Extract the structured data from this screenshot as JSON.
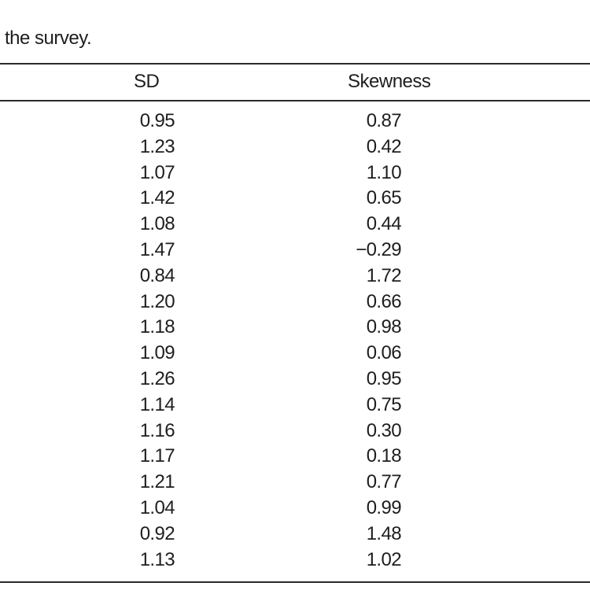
{
  "caption": "the survey.",
  "table": {
    "columns": [
      "SD",
      "Skewness"
    ],
    "rows": [
      {
        "sd": "0.95",
        "skewness": "0.87"
      },
      {
        "sd": "1.23",
        "skewness": "0.42"
      },
      {
        "sd": "1.07",
        "skewness": "1.10"
      },
      {
        "sd": "1.42",
        "skewness": "0.65"
      },
      {
        "sd": "1.08",
        "skewness": "0.44"
      },
      {
        "sd": "1.47",
        "skewness": "−0.29"
      },
      {
        "sd": "0.84",
        "skewness": "1.72"
      },
      {
        "sd": "1.20",
        "skewness": "0.66"
      },
      {
        "sd": "1.18",
        "skewness": "0.98"
      },
      {
        "sd": "1.09",
        "skewness": "0.06"
      },
      {
        "sd": "1.26",
        "skewness": "0.95"
      },
      {
        "sd": "1.14",
        "skewness": "0.75"
      },
      {
        "sd": "1.16",
        "skewness": "0.30"
      },
      {
        "sd": "1.17",
        "skewness": "0.18"
      },
      {
        "sd": "1.21",
        "skewness": "0.77"
      },
      {
        "sd": "1.04",
        "skewness": "0.99"
      },
      {
        "sd": "0.92",
        "skewness": "1.48"
      },
      {
        "sd": "1.13",
        "skewness": "1.02"
      }
    ]
  }
}
